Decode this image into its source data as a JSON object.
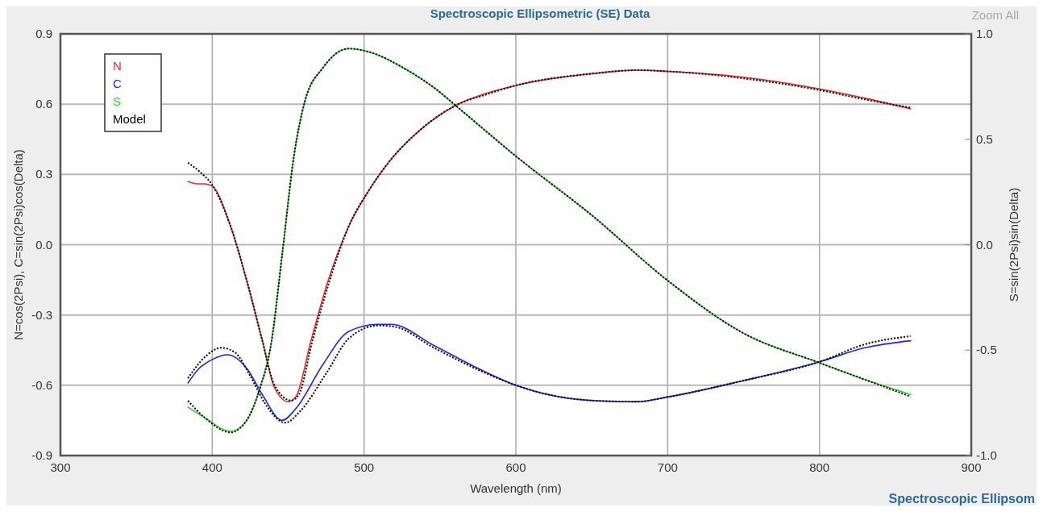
{
  "chart_data": {
    "type": "line",
    "title": "Spectroscopic Ellipsometric (SE) Data",
    "xlabel": "Wavelength (nm)",
    "ylabel": "N=cos(2Psi), C=sin(2Psi)cos(Delta)",
    "y2label": "S=sin(2Psi)sin(Delta)",
    "xlim": [
      300,
      900
    ],
    "xticks": [
      300,
      400,
      500,
      600,
      700,
      800,
      900
    ],
    "ylim": [
      -0.9,
      0.9
    ],
    "yticks": [
      {
        "value": -0.9,
        "label": "-0.9"
      },
      {
        "value": -0.6,
        "label": "-0.6"
      },
      {
        "value": -0.3,
        "label": "-0.3"
      },
      {
        "value": 0,
        "label": "0.0"
      },
      {
        "value": 0.3,
        "label": "0.3"
      },
      {
        "value": 0.6,
        "label": "0.6"
      },
      {
        "value": 0.9,
        "label": "0.9"
      }
    ],
    "y2lim": [
      -1,
      1
    ],
    "y2ticks": [
      {
        "value": -1,
        "label": "-1.0"
      },
      {
        "value": -0.5,
        "label": "-0.5"
      },
      {
        "value": 0,
        "label": "0.0"
      },
      {
        "value": 0.5,
        "label": "0.5"
      },
      {
        "value": 1,
        "label": "1.0"
      }
    ],
    "grid": true,
    "legend": "top left",
    "marker": "none",
    "annotations": [
      "Zoom All",
      "Spectroscopic Ellipsom"
    ],
    "series": [
      {
        "name": "N",
        "color": "#ff2020",
        "x": [
          384,
          390,
          395,
          400,
          412,
          423,
          433,
          441,
          450,
          455,
          465,
          476,
          490,
          503,
          516,
          537,
          562,
          580,
          600,
          650,
          680,
          700,
          750,
          800,
          830,
          860
        ],
        "values": [
          0.27,
          0.26,
          0.26,
          0.25,
          0.08,
          -0.16,
          -0.41,
          -0.61,
          -0.67,
          -0.65,
          -0.41,
          -0.16,
          0.08,
          0.23,
          0.35,
          0.49,
          0.6,
          0.645,
          0.68,
          0.73,
          0.745,
          0.74,
          0.715,
          0.665,
          0.625,
          0.58
        ]
      },
      {
        "name": "C",
        "color": "#2020ff",
        "x": [
          384,
          391,
          400,
          410,
          423,
          433,
          446,
          455,
          473,
          490,
          509,
          518,
          546,
          579,
          600,
          650,
          680,
          700,
          750,
          800,
          830,
          860
        ],
        "values": [
          -0.59,
          -0.53,
          -0.49,
          -0.47,
          -0.53,
          -0.64,
          -0.75,
          -0.7,
          -0.51,
          -0.37,
          -0.34,
          -0.34,
          -0.43,
          -0.54,
          -0.6,
          -0.665,
          -0.67,
          -0.65,
          -0.58,
          -0.5,
          -0.44,
          -0.41
        ]
      },
      {
        "name": "S",
        "color": "#20e020",
        "axis": "y2",
        "x": [
          384,
          395,
          412,
          422,
          431,
          439,
          446,
          454,
          461,
          473,
          490,
          503,
          528,
          547,
          562,
          600,
          650,
          700,
          750,
          800,
          830,
          860
        ],
        "values": [
          -0.77,
          -0.82,
          -0.885,
          -0.84,
          -0.69,
          -0.46,
          -0.05,
          0.43,
          0.68,
          0.84,
          0.93,
          0.915,
          0.83,
          0.74,
          0.65,
          0.42,
          0.14,
          -0.17,
          -0.42,
          -0.56,
          -0.64,
          -0.71
        ]
      },
      {
        "name": "Model",
        "color": "#000000",
        "line_style": "dotted",
        "x": [
          384,
          392,
          400,
          412,
          423,
          433,
          441,
          452,
          457,
          466,
          477,
          490,
          503,
          516,
          537,
          562,
          580,
          600,
          650,
          680,
          700,
          750,
          800,
          830,
          860
        ],
        "values": [
          0.35,
          0.31,
          0.255,
          0.08,
          -0.16,
          -0.41,
          -0.6,
          -0.665,
          -0.64,
          -0.41,
          -0.16,
          0.08,
          0.23,
          0.35,
          0.49,
          0.6,
          0.64,
          0.68,
          0.73,
          0.745,
          0.74,
          0.71,
          0.66,
          0.62,
          0.585
        ]
      },
      {
        "color": "#000000",
        "line_style": "dotted",
        "x": [
          384,
          395,
          406,
          415,
          425,
          435,
          448,
          458,
          475,
          490,
          509,
          520,
          546,
          579,
          600,
          650,
          680,
          700,
          750,
          800,
          830,
          860
        ],
        "values": [
          -0.57,
          -0.48,
          -0.44,
          -0.46,
          -0.56,
          -0.68,
          -0.76,
          -0.71,
          -0.55,
          -0.4,
          -0.345,
          -0.35,
          -0.44,
          -0.545,
          -0.6,
          -0.665,
          -0.67,
          -0.65,
          -0.58,
          -0.5,
          -0.425,
          -0.39
        ]
      },
      {
        "color": "#000000",
        "line_style": "dotted",
        "axis": "y2",
        "x": [
          384,
          395,
          412,
          422,
          431,
          439,
          446,
          454,
          461,
          473,
          490,
          503,
          528,
          547,
          562,
          600,
          650,
          700,
          750,
          800,
          830,
          860
        ],
        "values": [
          -0.74,
          -0.82,
          -0.89,
          -0.84,
          -0.69,
          -0.46,
          -0.05,
          0.43,
          0.68,
          0.84,
          0.93,
          0.915,
          0.83,
          0.74,
          0.65,
          0.42,
          0.14,
          -0.17,
          -0.42,
          -0.56,
          -0.64,
          -0.72
        ]
      }
    ]
  }
}
